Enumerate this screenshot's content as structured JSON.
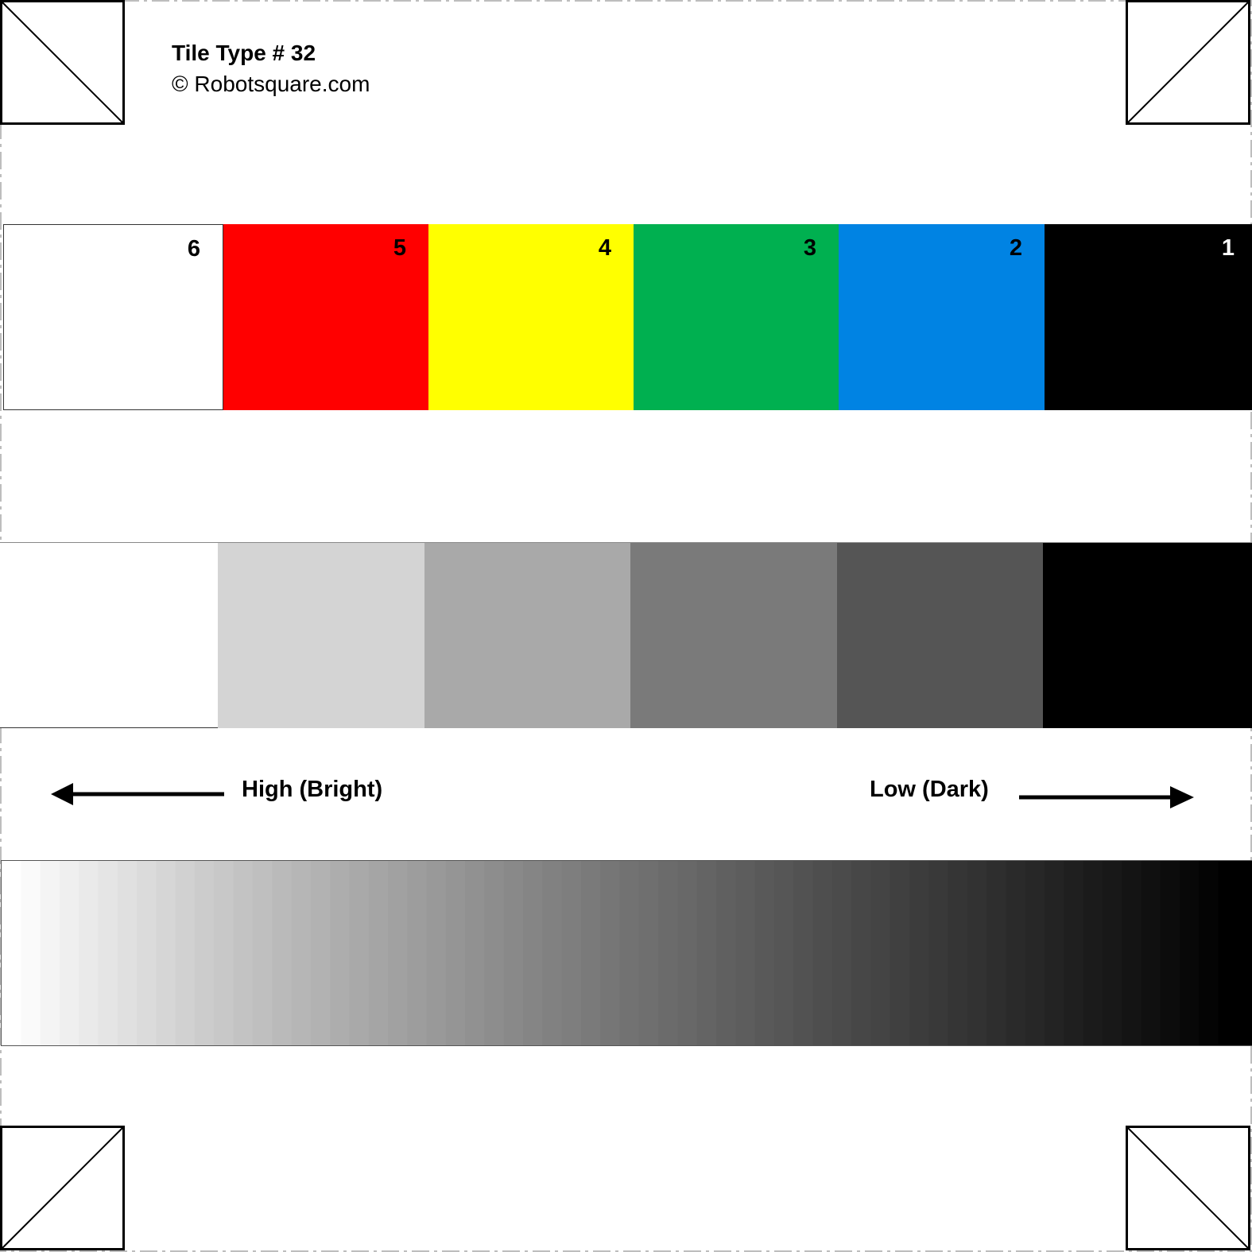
{
  "tile": {
    "title": "Tile Type # 32",
    "copyright": "© Robotsquare.com"
  },
  "color_swatches": [
    {
      "label": "6",
      "color": "#ffffff",
      "text_color": "#000000"
    },
    {
      "label": "5",
      "color": "#ff0000",
      "text_color": "#000000"
    },
    {
      "label": "4",
      "color": "#ffff00",
      "text_color": "#000000"
    },
    {
      "label": "3",
      "color": "#00b050",
      "text_color": "#000000"
    },
    {
      "label": "2",
      "color": "#0083e3",
      "text_color": "#000000"
    },
    {
      "label": "1",
      "color": "#000000",
      "text_color": "#ffffff"
    }
  ],
  "gray_swatches": [
    "#ffffff",
    "#d4d4d4",
    "#a9a9a9",
    "#7a7a7a",
    "#555555",
    "#000000"
  ],
  "scale": {
    "high_label": "High (Bright)",
    "low_label": "Low (Dark)",
    "high_direction": "left",
    "low_direction": "right"
  },
  "gradient": {
    "from": "#ffffff",
    "to": "#000000",
    "steps": 64
  },
  "corner_markers": [
    {
      "position": "top-left",
      "diagonal": "down"
    },
    {
      "position": "top-right",
      "diagonal": "up"
    },
    {
      "position": "bottom-left",
      "diagonal": "up"
    },
    {
      "position": "bottom-right",
      "diagonal": "down"
    }
  ]
}
